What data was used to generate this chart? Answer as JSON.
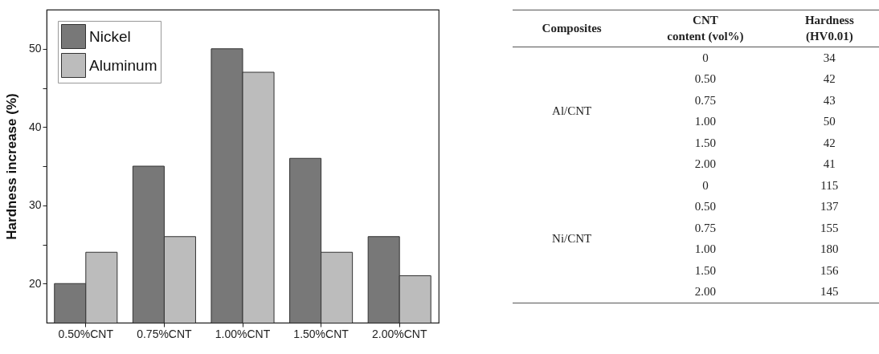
{
  "chart_data": [
    {
      "type": "bar",
      "ylabel": "Hardness increase (%)",
      "categories": [
        "0.50%CNT",
        "0.75%CNT",
        "1.00%CNT",
        "1.50%CNT",
        "2.00%CNT"
      ],
      "series": [
        {
          "name": "Nickel",
          "color": "#787878",
          "values": [
            20,
            35,
            50,
            36,
            26
          ]
        },
        {
          "name": "Aluminum",
          "color": "#bcbcbc",
          "values": [
            24,
            26,
            47,
            24,
            21
          ]
        }
      ],
      "ylim": [
        15,
        55
      ],
      "yticks": [
        20,
        {
          "value": 25,
          "label": null
        },
        30,
        {
          "value": 35,
          "label": null
        },
        40,
        {
          "value": 45,
          "label": null
        },
        50
      ],
      "grid": false,
      "legend": "top left"
    },
    {
      "type": "other",
      "categories": [
        "Composites",
        "CNT\ncontent (vol%)",
        "Hardness\n(HV0.01)"
      ],
      "cell_labels": [
        [
          "Al/CNT",
          "0",
          "34"
        ],
        [
          null,
          "0.50",
          "42"
        ],
        [
          null,
          "0.75",
          "43"
        ],
        [
          null,
          "1.00",
          "50"
        ],
        [
          null,
          "1.50",
          "42"
        ],
        [
          null,
          "2.00",
          "41"
        ],
        [
          "Ni/CNT",
          "0",
          "115"
        ],
        [
          null,
          "0.50",
          "137"
        ],
        [
          null,
          "0.75",
          "155"
        ],
        [
          null,
          "1.00",
          "180"
        ],
        [
          null,
          "1.50",
          "156"
        ],
        [
          null,
          "2.00",
          "145"
        ]
      ]
    }
  ]
}
